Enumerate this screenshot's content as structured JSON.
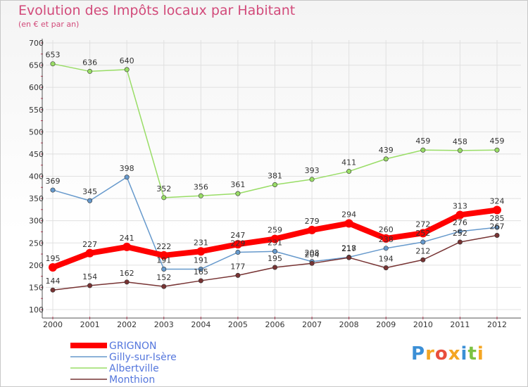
{
  "chart_data": {
    "type": "line",
    "title": "Evolution des Impôts locaux par Habitant",
    "subtitle": "(en € et par an)",
    "xlabel": "",
    "ylabel": "",
    "x": [
      "2000",
      "2001",
      "2002",
      "2003",
      "2004",
      "2005",
      "2006",
      "2007",
      "2008",
      "2009",
      "2010",
      "2011",
      "2012"
    ],
    "ylim": [
      100,
      700
    ],
    "yticks": [
      100,
      150,
      200,
      250,
      300,
      350,
      400,
      450,
      500,
      550,
      600,
      650,
      700
    ],
    "grid": true,
    "series": [
      {
        "name": "GRIGNON",
        "color": "#ff0000",
        "values": [
          195,
          227,
          241,
          222,
          231,
          247,
          259,
          279,
          294,
          260,
          272,
          313,
          324
        ]
      },
      {
        "name": "Gilly-sur-Isère",
        "color": "#6699cc",
        "values": [
          369,
          345,
          398,
          191,
          191,
          229,
          231,
          208,
          218,
          238,
          252,
          276,
          285
        ]
      },
      {
        "name": "Albertville",
        "color": "#99dd66",
        "values": [
          653,
          636,
          640,
          352,
          356,
          361,
          381,
          393,
          411,
          439,
          459,
          458,
          459
        ]
      },
      {
        "name": "Monthion",
        "color": "#773333",
        "values": [
          144,
          154,
          162,
          152,
          165,
          177,
          195,
          204,
          217,
          194,
          212,
          252,
          267
        ]
      }
    ]
  },
  "logo": {
    "text": "Proxiti",
    "letters": [
      "P",
      "r",
      "o",
      "x",
      "i",
      "t",
      "i"
    ],
    "colors": [
      "#3b8fd6",
      "#f4a623",
      "#e94e3c",
      "#f4a623",
      "#3b8fd6",
      "#7cc242",
      "#f4a623"
    ]
  }
}
